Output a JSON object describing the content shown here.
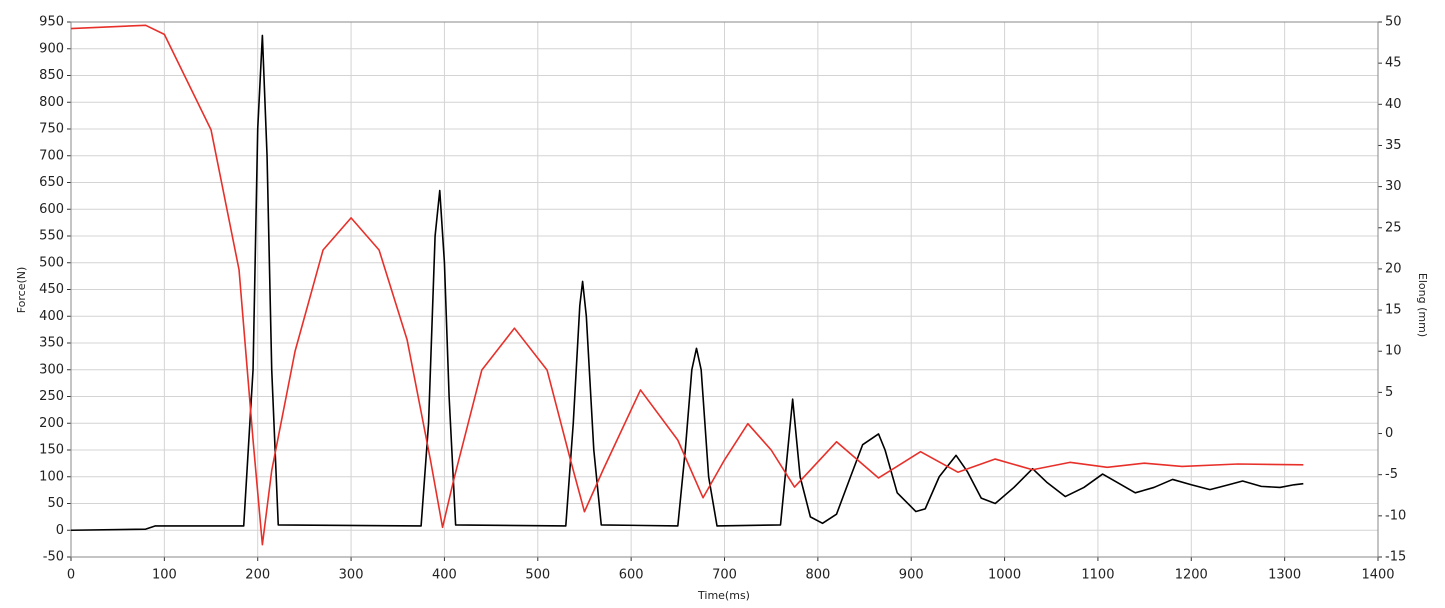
{
  "chart_data": {
    "type": "line",
    "x_label": "Time(ms)",
    "y_label": "Force(N)",
    "y2_label": "Elong (mm)",
    "xlim": [
      0,
      1400
    ],
    "xticks": [
      0,
      100,
      200,
      300,
      400,
      500,
      600,
      700,
      800,
      900,
      1000,
      1100,
      1200,
      1300,
      1400
    ],
    "ylim": [
      -50,
      950
    ],
    "yticks": [
      -50,
      0,
      50,
      100,
      150,
      200,
      250,
      300,
      350,
      400,
      450,
      500,
      550,
      600,
      650,
      700,
      750,
      800,
      850,
      900,
      950
    ],
    "y2lim": [
      -15,
      50
    ],
    "y2ticks": [
      -15,
      -10,
      -5,
      0,
      5,
      10,
      15,
      20,
      25,
      30,
      35,
      40,
      45,
      50
    ],
    "grid": true,
    "series": [
      {
        "color": "#000000",
        "x": [
          0,
          80,
          90,
          185,
          195,
          200,
          205,
          210,
          215,
          222,
          375,
          383,
          390,
          395,
          400,
          405,
          412,
          530,
          538,
          545,
          548,
          552,
          560,
          568,
          650,
          658,
          665,
          670,
          675,
          683,
          692,
          760,
          765,
          773,
          781,
          792,
          805,
          820,
          835,
          848,
          865,
          872,
          885,
          905,
          915,
          930,
          948,
          960,
          975,
          990,
          1010,
          1030,
          1045,
          1065,
          1085,
          1105,
          1120,
          1140,
          1160,
          1180,
          1200,
          1220,
          1240,
          1255,
          1275,
          1295,
          1310,
          1320
        ],
        "values": [
          0,
          2,
          8,
          8,
          300,
          750,
          925,
          700,
          300,
          10,
          8,
          200,
          550,
          635,
          500,
          250,
          10,
          8,
          200,
          420,
          465,
          400,
          150,
          10,
          8,
          150,
          300,
          340,
          300,
          100,
          8,
          10,
          100,
          245,
          100,
          25,
          13,
          30,
          100,
          160,
          180,
          150,
          70,
          35,
          40,
          100,
          140,
          110,
          60,
          50,
          80,
          115,
          90,
          63,
          80,
          105,
          90,
          70,
          80,
          95,
          85,
          76,
          85,
          92,
          82,
          80,
          85,
          87
        ]
      },
      {
        "color": "#e8302a",
        "axis": "y2",
        "x": [
          0,
          80,
          100,
          150,
          180,
          195,
          205,
          215,
          240,
          270,
          300,
          330,
          360,
          385,
          398,
          410,
          440,
          475,
          510,
          535,
          550,
          570,
          610,
          650,
          677,
          700,
          725,
          750,
          775,
          820,
          865,
          910,
          950,
          990,
          1030,
          1070,
          1110,
          1150,
          1190,
          1250,
          1320
        ],
        "values": [
          49.2,
          49.6,
          48.5,
          36.9,
          19.9,
          -0.8,
          -13.5,
          -4.5,
          10,
          22.3,
          26.2,
          22.3,
          11.4,
          -3.2,
          -11.4,
          -5.6,
          7.7,
          12.8,
          7.7,
          -3.2,
          -9.5,
          -4.4,
          5.3,
          -0.8,
          -7.8,
          -3.2,
          1.2,
          -2,
          -6.5,
          -1,
          -5.4,
          -2.2,
          -4.7,
          -3.1,
          -4.4,
          -3.5,
          -4.1,
          -3.6,
          -4,
          -3.7,
          -3.8
        ]
      }
    ]
  }
}
